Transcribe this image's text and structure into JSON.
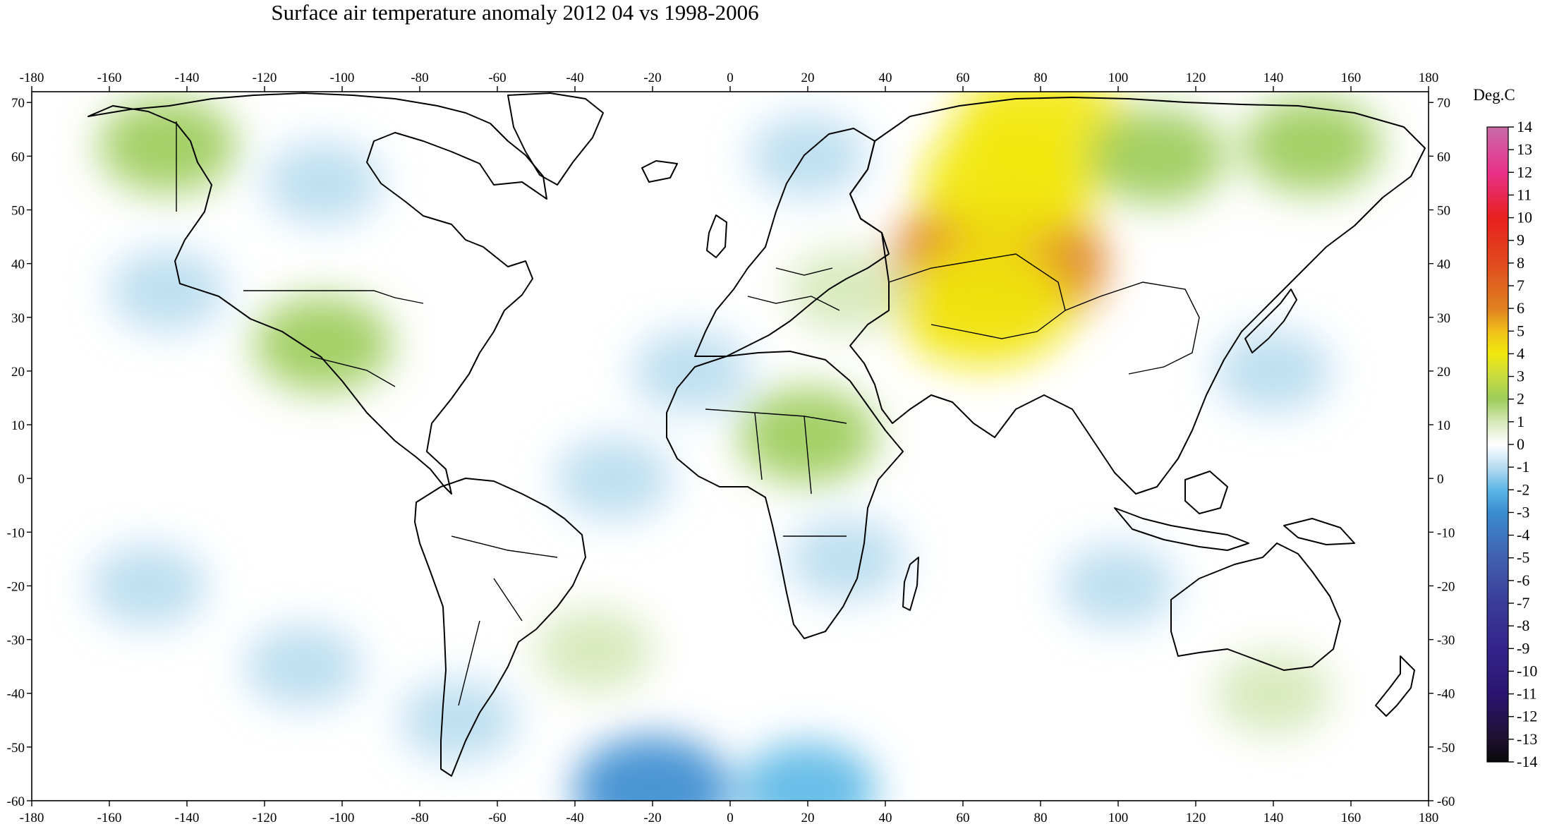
{
  "title": "Surface air temperature anomaly 2012 04 vs 1998-2006",
  "colorbar": {
    "unit_label": "Deg.C",
    "min": -14,
    "max": 14,
    "tick_labels": [
      "14",
      "13",
      "12",
      "11",
      "10",
      "9",
      "8",
      "7",
      "6",
      "5",
      "4",
      "3",
      "2",
      "1",
      "0",
      "-1",
      "-2",
      "-3",
      "-4",
      "-5",
      "-6",
      "-7",
      "-8",
      "-9",
      "-10",
      "-11",
      "-12",
      "-13",
      "-14"
    ],
    "stops": [
      {
        "value": 14,
        "color": "#c86aa8"
      },
      {
        "value": 12,
        "color": "#e8308a"
      },
      {
        "value": 10,
        "color": "#e8201e"
      },
      {
        "value": 8,
        "color": "#e04a1e"
      },
      {
        "value": 6,
        "color": "#e08020"
      },
      {
        "value": 5,
        "color": "#f0c01a"
      },
      {
        "value": 4,
        "color": "#f2e810"
      },
      {
        "value": 3,
        "color": "#c8dc40"
      },
      {
        "value": 2,
        "color": "#9ccc5a"
      },
      {
        "value": 1,
        "color": "#d6e8b8"
      },
      {
        "value": 0,
        "color": "#ffffff"
      },
      {
        "value": -1,
        "color": "#b8dcf0"
      },
      {
        "value": -2,
        "color": "#5cb8e6"
      },
      {
        "value": -3,
        "color": "#3a8cd0"
      },
      {
        "value": -5,
        "color": "#4260b0"
      },
      {
        "value": -7,
        "color": "#3a3c98"
      },
      {
        "value": -9,
        "color": "#34248a"
      },
      {
        "value": -11,
        "color": "#2a1470"
      },
      {
        "value": -13,
        "color": "#1e1030"
      },
      {
        "value": -14,
        "color": "#0a0a0a"
      }
    ]
  },
  "x_axis": {
    "min": -180,
    "max": 180,
    "tick_labels": [
      "-180",
      "-160",
      "-140",
      "-120",
      "-100",
      "-80",
      "-60",
      "-40",
      "-20",
      "0",
      "20",
      "40",
      "60",
      "80",
      "100",
      "120",
      "140",
      "160",
      "180"
    ]
  },
  "y_axis": {
    "min": -60,
    "max": 72,
    "tick_labels": [
      "70",
      "60",
      "50",
      "40",
      "30",
      "20",
      "10",
      "0",
      "-10",
      "-20",
      "-30",
      "-40",
      "-50",
      "-60"
    ]
  },
  "anomaly_regions": [
    {
      "lon": 69,
      "lat": 40,
      "value": 6
    },
    {
      "lon": 72,
      "lat": 55,
      "value": 4
    },
    {
      "lon": 80,
      "lat": 65,
      "value": 4
    },
    {
      "lon": 65,
      "lat": 32,
      "value": 4
    },
    {
      "lon": 110,
      "lat": 60,
      "value": 2
    },
    {
      "lon": 150,
      "lat": 62,
      "value": 2
    },
    {
      "lon": -105,
      "lat": 25,
      "value": 2
    },
    {
      "lon": -145,
      "lat": 62,
      "value": 2
    },
    {
      "lon": 20,
      "lat": 8,
      "value": 2
    },
    {
      "lon": 30,
      "lat": 35,
      "value": 1
    },
    {
      "lon": -35,
      "lat": -32,
      "value": 1
    },
    {
      "lon": 140,
      "lat": -40,
      "value": 1
    },
    {
      "lon": 20,
      "lat": 60,
      "value": -1
    },
    {
      "lon": -105,
      "lat": 55,
      "value": -1
    },
    {
      "lon": -10,
      "lat": 20,
      "value": -1
    },
    {
      "lon": -30,
      "lat": 0,
      "value": -1
    },
    {
      "lon": 30,
      "lat": -15,
      "value": -1
    },
    {
      "lon": 140,
      "lat": 20,
      "value": -1
    },
    {
      "lon": -145,
      "lat": 35,
      "value": -1
    },
    {
      "lon": -150,
      "lat": -20,
      "value": -1
    },
    {
      "lon": -110,
      "lat": -35,
      "value": -1
    },
    {
      "lon": -70,
      "lat": -45,
      "value": -1
    },
    {
      "lon": 100,
      "lat": -20,
      "value": -1
    },
    {
      "lon": -20,
      "lat": -58,
      "value": -3
    },
    {
      "lon": 20,
      "lat": -58,
      "value": -2
    }
  ]
}
